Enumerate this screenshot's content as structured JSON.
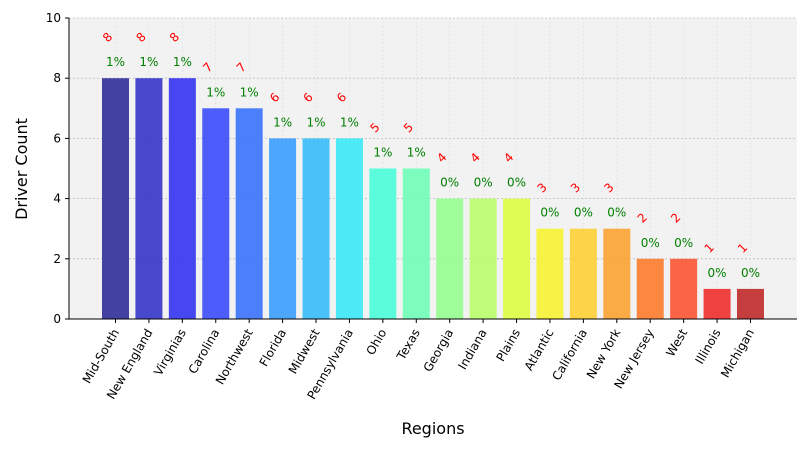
{
  "chart_data": {
    "type": "bar",
    "xlabel": "Regions",
    "ylabel": "Driver Count",
    "ylim": [
      0,
      10
    ],
    "yticks": [
      0,
      2,
      4,
      6,
      8,
      10
    ],
    "grid": true,
    "categories": [
      "Mid-South",
      "New England",
      "Virginias",
      "Carolina",
      "Northwest",
      "Florida",
      "Midwest",
      "Pennsylvania",
      "Ohio",
      "Texas",
      "Georgia",
      "Indiana",
      "Plains",
      "Atlantic",
      "California",
      "New York",
      "New Jersey",
      "West",
      "Illinois",
      "Michigan"
    ],
    "values": [
      8,
      8,
      8,
      7,
      7,
      6,
      6,
      6,
      5,
      5,
      4,
      4,
      4,
      3,
      3,
      3,
      2,
      2,
      1,
      1
    ],
    "value_labels": [
      "8",
      "8",
      "8",
      "7",
      "7",
      "6",
      "6",
      "6",
      "5",
      "5",
      "4",
      "4",
      "4",
      "3",
      "3",
      "3",
      "2",
      "2",
      "1",
      "1"
    ],
    "percent_labels": [
      "1%",
      "1%",
      "1%",
      "1%",
      "1%",
      "1%",
      "1%",
      "1%",
      "1%",
      "1%",
      "0%",
      "0%",
      "0%",
      "0%",
      "0%",
      "0%",
      "0%",
      "0%",
      "0%",
      "0%"
    ],
    "colors": [
      "#2f2f9a",
      "#3535c8",
      "#3434f2",
      "#3a4cfc",
      "#3a73fc",
      "#3a9dfc",
      "#35bdfa",
      "#3ae8f7",
      "#4afdd8",
      "#6ffeb8",
      "#95fe8f",
      "#b9fe6a",
      "#dcfd42",
      "#f7f233",
      "#fcd234",
      "#fca332",
      "#fc7c2a",
      "#fc5532",
      "#f02e2e",
      "#bf2a2a"
    ]
  }
}
